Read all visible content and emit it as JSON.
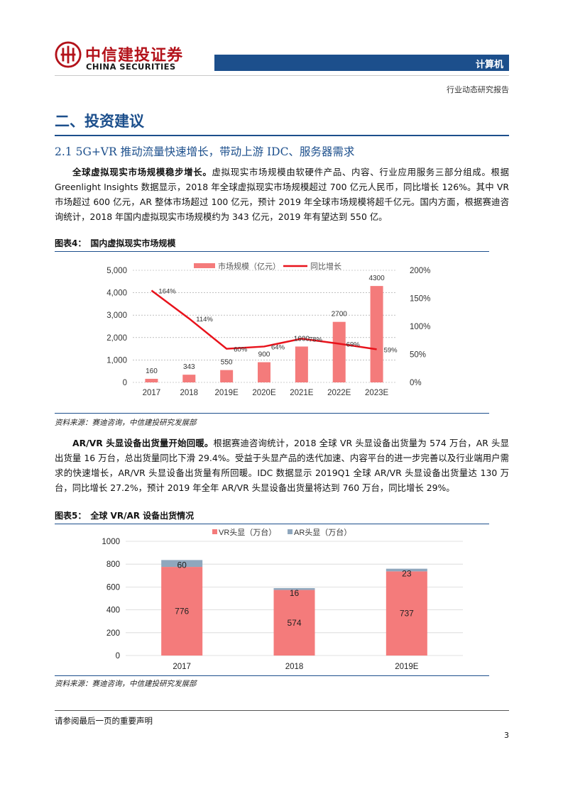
{
  "header": {
    "company_cn": "中信建投证券",
    "company_en": "CHINA SECURITIES",
    "sector": "计算机",
    "report_type": "行业动态研究报告"
  },
  "section": {
    "title": "二、投资建议",
    "subtitle": "2.1 5G+VR 推动流量快速增长，带动上游 IDC、服务器需求"
  },
  "paragraph1": {
    "lead": "全球虚拟现实市场规模稳步增长。",
    "body": "虚拟现实市场规模由软硬件产品、内容、行业应用服务三部分组成。根据 Greenlight Insights 数据显示，2018 年全球虚拟现实市场规模超过 700 亿元人民币，同比增长 126%。其中 VR 市场超过 600 亿元，AR 整体市场超过 100 亿元，预计 2019 年全球市场规模将超千亿元。国内方面，根据赛迪咨询统计，2018 年国内虚拟现实市场规模约为 343 亿元，2019 年有望达到 550 亿。"
  },
  "figure4": {
    "label": "图表4：",
    "title": "国内虚拟现实市场规模",
    "source": "资料来源：赛迪咨询，中信建投研究发展部"
  },
  "paragraph2": {
    "lead": "AR/VR 头显设备出货量开始回暖。",
    "body": "根据赛迪咨询统计，2018 全球 VR 头显设备出货量为 574 万台，AR 头显出货量 16 万台，总出货量同比下滑 29.4%。受益于头显产品的迭代加速、内容平台的进一步完善以及行业端用户需求的快速增长，AR/VR 头显设备出货量有所回暖。IDC 数据显示 2019Q1 全球 AR/VR 头显设备出货量达 130 万台，同比增长 27.2%，预计 2019 年全年 AR/VR 头显设备出货量将达到 760 万台，同比增长 29%。"
  },
  "figure5": {
    "label": "图表5：",
    "title": "全球 VR/AR 设备出货情况",
    "source": "资料来源：赛迪咨询，中信建投研究发展部"
  },
  "chart_data": [
    {
      "type": "bar",
      "categories": [
        "2017",
        "2018",
        "2019E",
        "2020E",
        "2021E",
        "2022E",
        "2023E"
      ],
      "series": [
        {
          "name": "市场规模（亿元）",
          "type": "bar",
          "axis": "left",
          "values": [
            160,
            343,
            550,
            900,
            1600,
            2700,
            4300
          ],
          "value_labels": [
            "160",
            "343",
            "550",
            "900",
            "1600",
            "2700",
            "4300"
          ],
          "color": "#f47b7b"
        },
        {
          "name": "同比增长",
          "type": "line",
          "axis": "right",
          "values": [
            164,
            114,
            60,
            64,
            78,
            69,
            59
          ],
          "value_labels": [
            "164%",
            "114%",
            "60%",
            "64%",
            "78%",
            "69%",
            "59%"
          ],
          "color": "#e8121b"
        }
      ],
      "ylim": [
        0,
        5000
      ],
      "yticks": [
        "0",
        "1,000",
        "2,000",
        "3,000",
        "4,000",
        "5,000"
      ],
      "y2lim": [
        0,
        200
      ],
      "y2ticks": [
        "0%",
        "50%",
        "100%",
        "150%",
        "200%"
      ],
      "grid": "dashed-horizontal",
      "legend": "top"
    },
    {
      "type": "stacked-bar",
      "categories": [
        "2017",
        "2018",
        "2019E"
      ],
      "series": [
        {
          "name": "VR头显（万台）",
          "values": [
            776,
            574,
            737
          ],
          "color": "#f47b7b"
        },
        {
          "name": "AR头显（万台）",
          "values": [
            60,
            16,
            23
          ],
          "color": "#8fa7bd"
        }
      ],
      "ylim": [
        0,
        1000
      ],
      "yticks": [
        "0",
        "200",
        "400",
        "600",
        "800",
        "1000"
      ],
      "grid": "horizontal",
      "legend": "top"
    }
  ],
  "footer": {
    "disclaimer": "请参阅最后一页的重要声明",
    "page": "3"
  }
}
